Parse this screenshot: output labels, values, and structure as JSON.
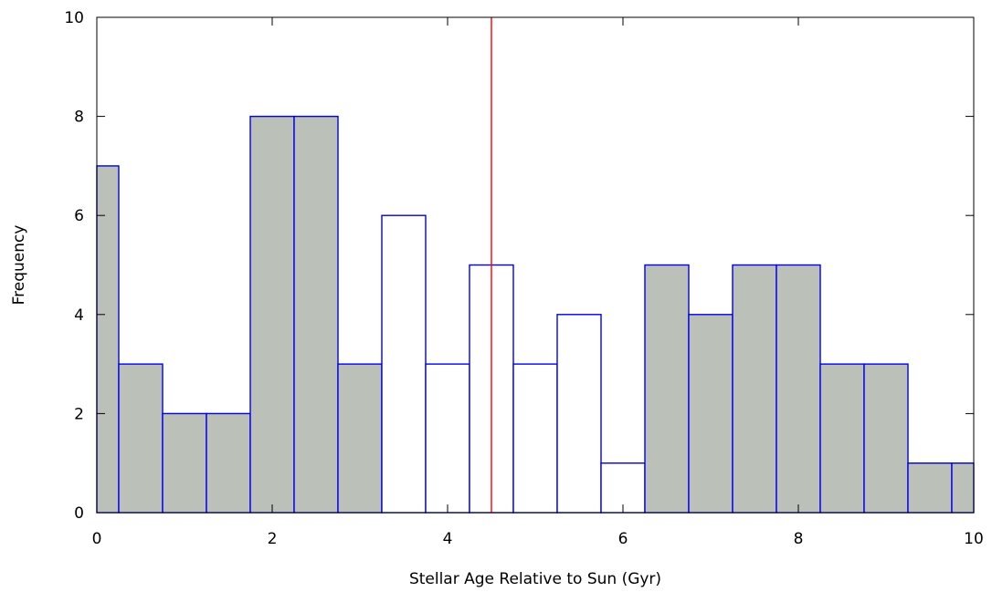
{
  "chart_data": {
    "type": "bar",
    "title": "",
    "xlabel": "Stellar Age Relative to Sun (Gyr)",
    "ylabel": "Frequency",
    "xlim": [
      0,
      10
    ],
    "ylim": [
      0,
      10
    ],
    "xticks": [
      0,
      2,
      4,
      6,
      8,
      10
    ],
    "xtick_labels": [
      "0",
      "2",
      "4",
      "6",
      "8",
      "10"
    ],
    "yticks": [
      0,
      2,
      4,
      6,
      8,
      10
    ],
    "ytick_labels": [
      "0",
      "2",
      "4",
      "6",
      "8",
      "10"
    ],
    "grid": false,
    "bars": [
      {
        "x0": 0.0,
        "x1": 0.25,
        "value": 7,
        "filled": true
      },
      {
        "x0": 0.25,
        "x1": 0.75,
        "value": 3,
        "filled": true
      },
      {
        "x0": 0.75,
        "x1": 1.25,
        "value": 2,
        "filled": true
      },
      {
        "x0": 1.25,
        "x1": 1.75,
        "value": 2,
        "filled": true
      },
      {
        "x0": 1.75,
        "x1": 2.25,
        "value": 8,
        "filled": true
      },
      {
        "x0": 2.25,
        "x1": 2.75,
        "value": 8,
        "filled": true
      },
      {
        "x0": 2.75,
        "x1": 3.25,
        "value": 3,
        "filled": true
      },
      {
        "x0": 3.25,
        "x1": 3.75,
        "value": 6,
        "filled": false
      },
      {
        "x0": 3.75,
        "x1": 4.25,
        "value": 3,
        "filled": false
      },
      {
        "x0": 4.25,
        "x1": 4.75,
        "value": 5,
        "filled": false
      },
      {
        "x0": 4.75,
        "x1": 5.25,
        "value": 3,
        "filled": false
      },
      {
        "x0": 5.25,
        "x1": 5.75,
        "value": 4,
        "filled": false
      },
      {
        "x0": 5.75,
        "x1": 6.25,
        "value": 1,
        "filled": false
      },
      {
        "x0": 6.25,
        "x1": 6.75,
        "value": 5,
        "filled": true
      },
      {
        "x0": 6.75,
        "x1": 7.25,
        "value": 4,
        "filled": true
      },
      {
        "x0": 7.25,
        "x1": 7.75,
        "value": 5,
        "filled": true
      },
      {
        "x0": 7.75,
        "x1": 8.25,
        "value": 5,
        "filled": true
      },
      {
        "x0": 8.25,
        "x1": 8.75,
        "value": 3,
        "filled": true
      },
      {
        "x0": 8.75,
        "x1": 9.25,
        "value": 3,
        "filled": true
      },
      {
        "x0": 9.25,
        "x1": 9.75,
        "value": 1,
        "filled": true
      },
      {
        "x0": 9.75,
        "x1": 10.0,
        "value": 1,
        "filled": true
      }
    ],
    "reference_line": {
      "x": 4.5,
      "color": "#ff0000"
    },
    "colors": {
      "bar_fill": "#bbc0b9",
      "bar_edge": "#0000ee",
      "unfilled": "#ffffff",
      "axis": "#000000"
    }
  }
}
